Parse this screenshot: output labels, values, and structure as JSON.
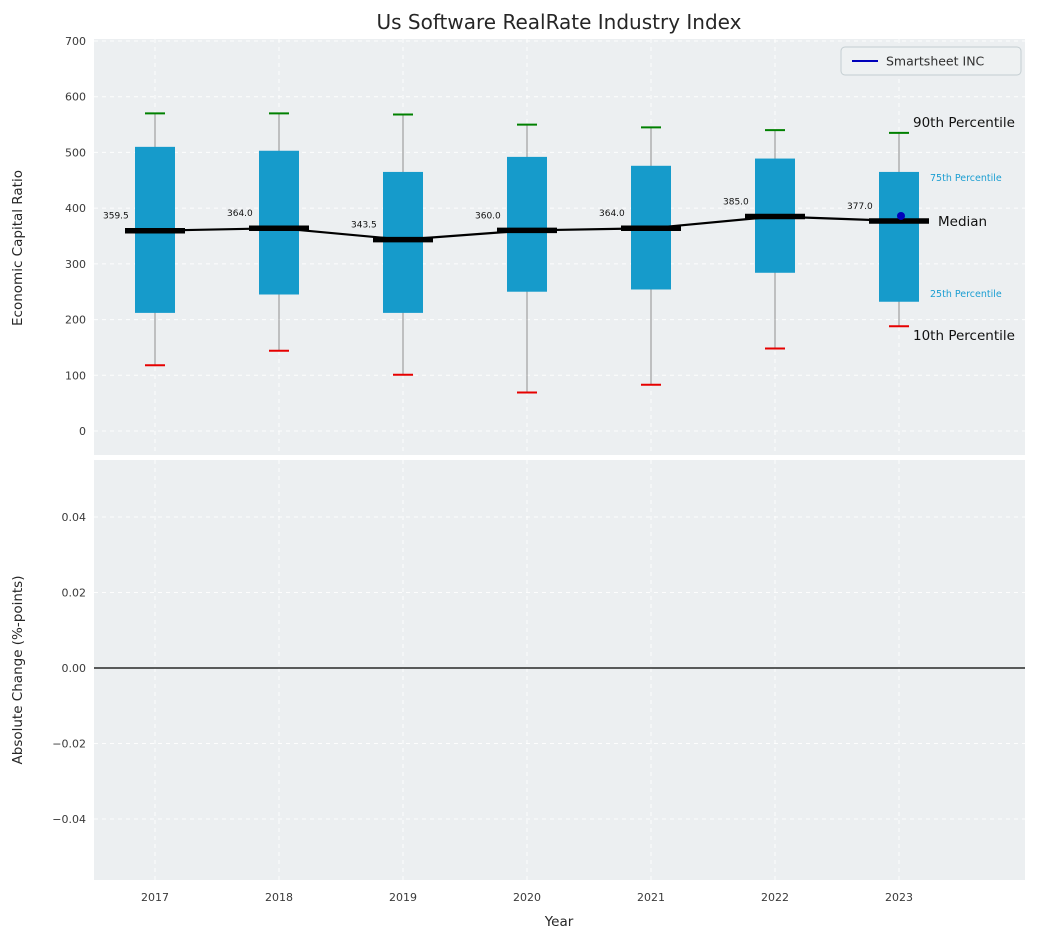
{
  "title": "Us Software RealRate Industry Index",
  "legend": {
    "label": "Smartsheet INC"
  },
  "annotations": {
    "p90": "90th Percentile",
    "p75": "75th Percentile",
    "median": "Median",
    "p25": "25th Percentile",
    "p10": "10th Percentile"
  },
  "colors": {
    "box": "#169bcb",
    "cap_high": "#008000",
    "cap_low": "#e60000",
    "whisker": "#8f8f8f",
    "median_line": "#000000",
    "series_line": "#0000bb",
    "percentile_label_blue": "#1b9ed2",
    "panel_bg": "#eceff1",
    "grid": "#ffffff",
    "zero_line": "#000000"
  },
  "chart_data": [
    {
      "type": "boxplot",
      "title": "Us Software RealRate Industry Index",
      "xlabel": "Year",
      "ylabel": "Economic Capital Ratio",
      "ylim": [
        -45,
        700
      ],
      "yticks": [
        0,
        100,
        200,
        300,
        400,
        500,
        600,
        700
      ],
      "ytick_labels": [
        "0",
        "100",
        "200",
        "300",
        "400",
        "500",
        "600",
        "700"
      ],
      "categories": [
        "2017",
        "2018",
        "2019",
        "2020",
        "2021",
        "2022",
        "2023"
      ],
      "series": {
        "p90": [
          570,
          570,
          568,
          550,
          545,
          540,
          535
        ],
        "p75": [
          510,
          503,
          465,
          492,
          476,
          489,
          465
        ],
        "median": [
          359.5,
          364.0,
          343.5,
          360.0,
          364.0,
          385.0,
          377.0
        ],
        "p25": [
          212,
          245,
          212,
          250,
          254,
          284,
          232
        ],
        "p10": [
          118,
          144,
          101,
          69,
          83,
          148,
          188
        ]
      },
      "median_labels": [
        "359.5",
        "364.0",
        "343.5",
        "360.0",
        "364.0",
        "385.0",
        "377.0"
      ],
      "highlight": {
        "name": "Smartsheet INC",
        "category": "2023",
        "value": 377.0
      },
      "legend_position": "upper right",
      "grid": "dashed-white"
    },
    {
      "type": "line",
      "xlabel": "Year",
      "ylabel": "Absolute Change (%-points)",
      "ylim": [
        -0.055,
        0.055
      ],
      "yticks": [
        -0.04,
        -0.02,
        0,
        0.02,
        0.04
      ],
      "ytick_labels": [
        "−0.04",
        "−0.02",
        "0.00",
        "0.02",
        "0.04"
      ],
      "categories": [
        "2017",
        "2018",
        "2019",
        "2020",
        "2021",
        "2022",
        "2023"
      ],
      "values": [],
      "zero_line": true,
      "grid": "dashed-white"
    }
  ]
}
